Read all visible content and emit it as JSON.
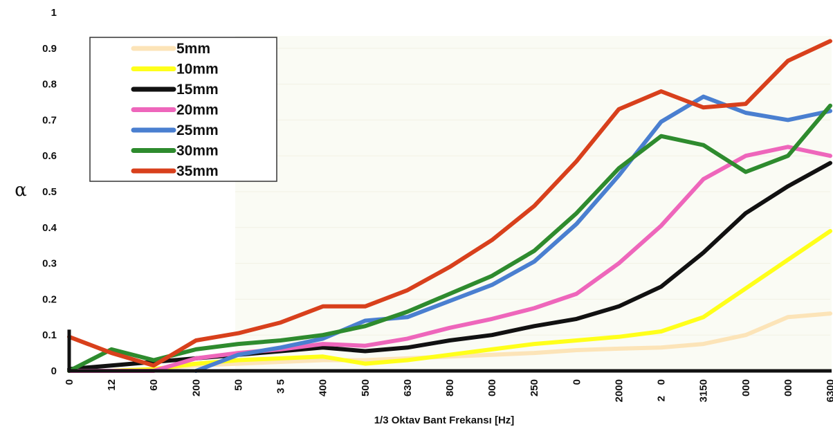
{
  "chart_data": {
    "type": "line",
    "xlabel": "1/3 Oktav Bant Frekansı [Hz]",
    "ylabel": "α",
    "ylim": [
      0,
      1
    ],
    "yticks": [
      "0",
      "0.1",
      "0.2",
      "0.3",
      "0.4",
      "0.5",
      "0.6",
      "0.7",
      "0.8",
      "0.9",
      "1"
    ],
    "categories": [
      "0",
      "12",
      "60",
      "200",
      "50",
      "3 5",
      "400",
      "500",
      "630",
      "800",
      "000",
      "250",
      "0",
      "2000",
      "0",
      "3150",
      "000",
      "000",
      "6300"
    ],
    "extra_tick_marks": [
      {
        "category_index": 14,
        "text": "2"
      }
    ],
    "legend_position": "top-left",
    "series": [
      {
        "name": "5mm",
        "color": "#fce4b8",
        "values": [
          0,
          0,
          0.005,
          0.015,
          0.02,
          0.025,
          0.03,
          0.03,
          0.035,
          0.04,
          0.045,
          0.05,
          0.058,
          0.062,
          0.065,
          0.075,
          0.1,
          0.15,
          0.16
        ]
      },
      {
        "name": "10mm",
        "color": "#ffff1a",
        "values": [
          0,
          0,
          0.005,
          0.02,
          0.03,
          0.035,
          0.04,
          0.02,
          0.03,
          0.045,
          0.06,
          0.075,
          0.085,
          0.095,
          0.11,
          0.15,
          0.23,
          0.31,
          0.39
        ]
      },
      {
        "name": "15mm",
        "color": "#111111",
        "values": [
          0.005,
          0.015,
          0.025,
          0.035,
          0.045,
          0.055,
          0.065,
          0.055,
          0.065,
          0.085,
          0.1,
          0.125,
          0.145,
          0.18,
          0.235,
          0.33,
          0.44,
          0.515,
          0.58
        ]
      },
      {
        "name": "20mm",
        "color": "#ee66bb",
        "values": [
          0,
          0,
          0,
          0.035,
          0.05,
          0.06,
          0.075,
          0.07,
          0.09,
          0.12,
          0.145,
          0.175,
          0.215,
          0.3,
          0.405,
          0.535,
          0.6,
          0.625,
          0.6
        ]
      },
      {
        "name": "25mm",
        "color": "#4a7fd0",
        "values": [
          null,
          null,
          null,
          0,
          0.045,
          0.065,
          0.09,
          0.14,
          0.15,
          0.195,
          0.24,
          0.305,
          0.41,
          0.545,
          0.695,
          0.765,
          0.72,
          0.7,
          0.725
        ]
      },
      {
        "name": "30mm",
        "color": "#2e8b2e",
        "values": [
          0,
          0.06,
          0.03,
          0.06,
          0.075,
          0.085,
          0.1,
          0.125,
          0.165,
          0.215,
          0.265,
          0.335,
          0.44,
          0.565,
          0.655,
          0.63,
          0.555,
          0.6,
          0.74
        ]
      },
      {
        "name": "35mm",
        "color": "#d8401c",
        "values": [
          0.095,
          0.05,
          0.015,
          0.085,
          0.105,
          0.135,
          0.18,
          0.18,
          0.225,
          0.29,
          0.365,
          0.46,
          0.585,
          0.73,
          0.78,
          0.735,
          0.745,
          0.865,
          0.92
        ]
      }
    ]
  }
}
